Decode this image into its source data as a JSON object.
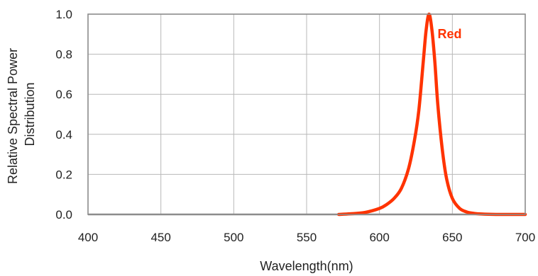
{
  "chart_data": {
    "type": "line",
    "title": "",
    "xlabel": "Wavelength(nm)",
    "ylabel_lines": [
      "Relative Spectral Power",
      "Distribution"
    ],
    "xlim": [
      400,
      700
    ],
    "ylim": [
      0.0,
      1.0
    ],
    "x_ticks": [
      400,
      450,
      500,
      550,
      600,
      650,
      700
    ],
    "y_ticks": [
      0.0,
      0.2,
      0.4,
      0.6,
      0.8,
      1.0
    ],
    "x_tick_labels": [
      "400",
      "450",
      "500",
      "550",
      "600",
      "650",
      "700"
    ],
    "y_tick_labels": [
      "0.0",
      "0.2",
      "0.4",
      "0.6",
      "0.8",
      "1.0"
    ],
    "grid": true,
    "series": [
      {
        "name": "Red",
        "color": "#ff3300",
        "x": [
          572,
          580,
          590,
          600,
          605,
          610,
          615,
          620,
          624,
          627,
          630,
          632,
          634,
          636,
          638,
          640,
          643,
          646,
          650,
          655,
          660,
          665,
          670,
          680,
          690,
          700
        ],
        "y": [
          0.0,
          0.003,
          0.01,
          0.03,
          0.05,
          0.08,
          0.13,
          0.23,
          0.37,
          0.52,
          0.76,
          0.92,
          1.0,
          0.92,
          0.76,
          0.55,
          0.33,
          0.18,
          0.08,
          0.03,
          0.012,
          0.005,
          0.002,
          0.0,
          0.0,
          0.0
        ]
      }
    ]
  }
}
